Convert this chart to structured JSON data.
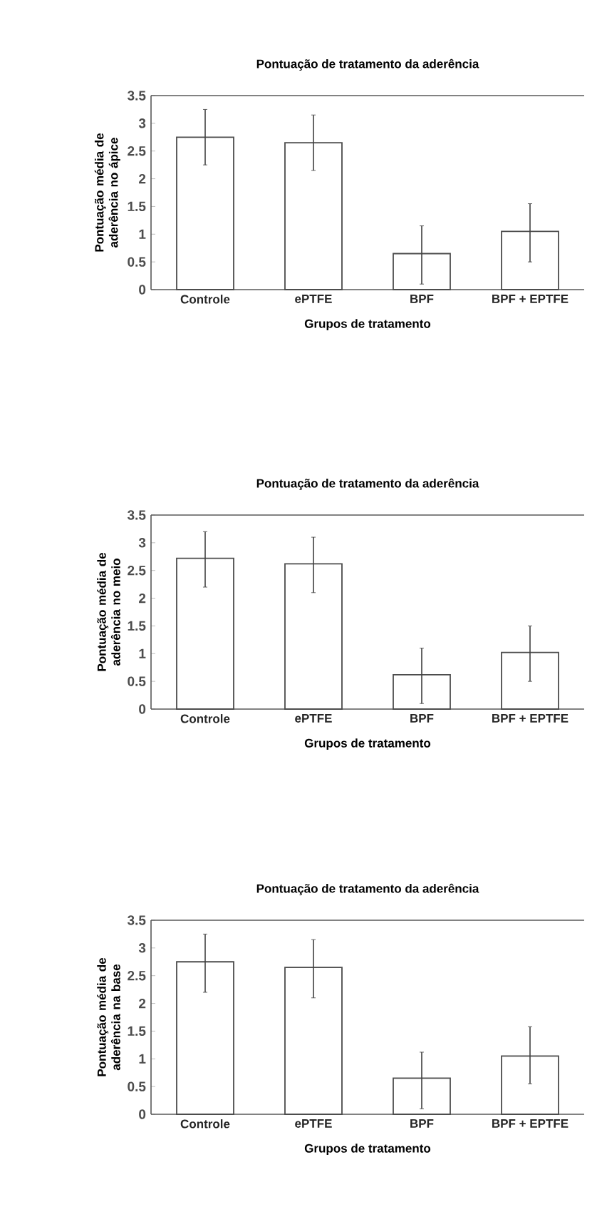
{
  "chart_data": [
    {
      "type": "bar",
      "title": "Pontuação de tratamento da aderência",
      "xlabel": "Grupos de tratamento",
      "ylabel": "Pontuação média de aderência no ápice",
      "categories": [
        "Controle",
        "ePTFE",
        "BPF",
        "BPF + EPTFE"
      ],
      "values": [
        2.75,
        2.65,
        0.65,
        1.05
      ],
      "errors": [
        [
          2.25,
          3.25
        ],
        [
          2.15,
          3.15
        ],
        [
          0.1,
          1.15
        ],
        [
          0.5,
          1.55
        ]
      ],
      "color": "#ffffff",
      "ylim": [
        0,
        3.5
      ],
      "yticks": [
        0,
        0.5,
        1,
        1.5,
        2,
        2.5,
        3,
        3.5
      ],
      "grid": false
    },
    {
      "type": "bar",
      "title": "Pontuação de tratamento da aderência",
      "xlabel": "Grupos de tratamento",
      "ylabel": "Pontuação média de aderência no meio",
      "categories": [
        "Controle",
        "ePTFE",
        "BPF",
        "BPF + EPTFE"
      ],
      "values": [
        2.72,
        2.62,
        0.62,
        1.02
      ],
      "errors": [
        [
          2.2,
          3.2
        ],
        [
          2.1,
          3.1
        ],
        [
          0.1,
          1.1
        ],
        [
          0.5,
          1.5
        ]
      ],
      "color": "#ffffff",
      "ylim": [
        0,
        3.5
      ],
      "yticks": [
        0,
        0.5,
        1,
        1.5,
        2,
        2.5,
        3,
        3.5
      ],
      "grid": false
    },
    {
      "type": "bar",
      "title": "Pontuação de tratamento da aderência",
      "xlabel": "Grupos de tratamento",
      "ylabel": "Pontuação média de aderência na base",
      "categories": [
        "Controle",
        "ePTFE",
        "BPF",
        "BPF + EPTFE"
      ],
      "values": [
        2.75,
        2.65,
        0.65,
        1.05
      ],
      "errors": [
        [
          2.2,
          3.25
        ],
        [
          2.1,
          3.15
        ],
        [
          0.1,
          1.12
        ],
        [
          0.55,
          1.58
        ]
      ],
      "color": "#ffffff",
      "ylim": [
        0,
        3.5
      ],
      "yticks": [
        0,
        0.5,
        1,
        1.5,
        2,
        2.5,
        3,
        3.5
      ],
      "grid": false
    }
  ]
}
